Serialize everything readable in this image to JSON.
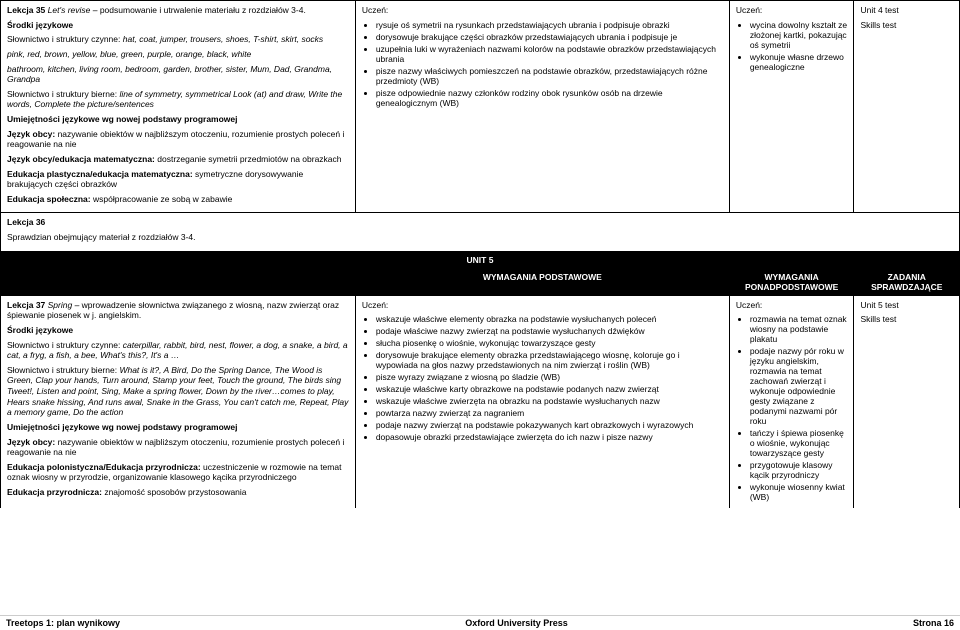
{
  "row1": {
    "col1": {
      "title_a": "Lekcja 35 ",
      "title_b": "Let's revise – ",
      "title_c": "podsumowanie i utrwalenie materiału z rozdziałów 3-4.",
      "srodki": "Środki językowe",
      "p1a": "Słownictwo i struktury czynne: ",
      "p1b": "hat, coat, jumper, trousers, shoes, T-shirt, skirt, socks",
      "p2": "pink, red, brown, yellow, blue, green, purple, orange, black, white",
      "p3": "bathroom, kitchen, living room, bedroom, garden, brother, sister, Mum, Dad, Grandma, Grandpa",
      "p4a": "Słownictwo i struktury bierne: ",
      "p4b": "line of symmetry, symmetrical Look (at) and draw, Write the words, Complete the picture/sentences",
      "umiej": "Umiejętności językowe wg nowej podstawy programowej",
      "p5a": "Język obcy: ",
      "p5b": "nazywanie obiektów w najbliższym otoczeniu, rozumienie prostych poleceń i reagowanie na nie",
      "p6a": "Język obcy/edukacja matematyczna: ",
      "p6b": "dostrzeganie symetrii przedmiotów na obrazkach",
      "p7a": "Edukacja plastyczna/edukacja matematyczna: ",
      "p7b": "symetryczne dorysowywanie brakujących części obrazków",
      "p8a": "Edukacja społeczna: ",
      "p8b": "współpracowanie ze sobą w zabawie"
    },
    "col2": {
      "uczen": "Uczeń:",
      "items": [
        "rysuje oś symetrii na rysunkach przedstawiających ubrania i podpisuje obrazki",
        "dorysowuje brakujące części obrazków przedstawiających ubrania i podpisuje je",
        "uzupełnia luki w wyrażeniach nazwami kolorów na podstawie obrazków przedstawiających ubrania",
        "pisze nazwy właściwych pomieszczeń na podstawie obrazków, przedstawiających różne przedmioty (WB)",
        "pisze odpowiednie nazwy członków rodziny obok rysunków osób na drzewie genealogicznym (WB)"
      ]
    },
    "col3": {
      "uczen": "Uczeń:",
      "items": [
        "wycina dowolny kształt ze złożonej kartki, pokazując oś symetrii",
        "wykonuje własne drzewo genealogiczne"
      ]
    },
    "col4": {
      "l1": "Unit 4 test",
      "l2": "Skills test"
    }
  },
  "row2": {
    "lekcja": "Lekcja 36",
    "text": "Sprawdzian obejmujący materiał z rozdziałów 3-4."
  },
  "unit": "UNIT 5",
  "headers": {
    "h2": "WYMAGANIA PODSTAWOWE",
    "h3": "WYMAGANIA PONADPODSTAWOWE",
    "h4": "ZADANIA SPRAWDZAJĄCE"
  },
  "row3": {
    "col1": {
      "title_a": "Lekcja 37 ",
      "title_b": "Spring – ",
      "title_c": "wprowadzenie słownictwa związanego z wiosną, nazw zwierząt oraz śpiewanie piosenek w j. angielskim.",
      "srodki": "Środki językowe",
      "p1a": "Słownictwo i struktury czynne: ",
      "p1b": "caterpillar, rabbit, bird, nest, flower, a dog, a snake, a bird, a cat, a fryg, a fish, a bee, What's this?, It's a …",
      "p2a": "Słownictwo i struktury bierne: ",
      "p2b": "What is it?, A Bird, Do the Spring Dance, The Wood is Green, Clap your hands, Turn around, Stamp your feet, Touch the ground, The birds sing Tweet!, Listen and point, Sing, Make a spring flower, Down by the river…comes to play, Hears snake hissing, And runs awal, Snake in the Grass, You can't catch me, Repeat, Play a memory game, Do the action",
      "umiej": "Umiejętności językowe wg nowej podstawy programowej",
      "p3a": "Język obcy: ",
      "p3b": "nazywanie obiektów w najbliższym otoczeniu, rozumienie prostych poleceń i reagowanie na nie",
      "p4a": "Edukacja polonistyczna/Edukacja przyrodnicza: ",
      "p4b": "uczestniczenie w rozmowie na temat oznak wiosny w przyrodzie, organizowanie klasowego kącika przyrodniczego",
      "p5a": "Edukacja przyrodnicza: ",
      "p5b": "znajomość sposobów przystosowania"
    },
    "col2": {
      "uczen": "Uczeń:",
      "items": [
        "wskazuje właściwe elementy obrazka na podstawie wysłuchanych poleceń",
        "podaje właściwe nazwy zwierząt na podstawie wysłuchanych dźwięków",
        "słucha piosenkę o wiośnie, wykonując towarzyszące gesty",
        "dorysowuje brakujące elementy obrazka przedstawiającego wiosnę, koloruje go i wypowiada na głos nazwy przedstawionych na nim zwierząt i roślin (WB)",
        "pisze wyrazy związane z wiosną po śladzie (WB)",
        "wskazuje właściwe karty obrazkowe na podstawie podanych nazw zwierząt",
        "wskazuje właściwe zwierzęta na obrazku na podstawie wysłuchanych nazw",
        "powtarza nazwy zwierząt za nagraniem",
        "podaje nazwy zwierząt na podstawie pokazywanych kart obrazkowych i wyrazowych",
        "dopasowuje obrazki przedstawiające zwierzęta do ich nazw i pisze nazwy"
      ]
    },
    "col3": {
      "uczen": "Uczeń:",
      "items": [
        "rozmawia na temat oznak wiosny na podstawie plakatu",
        "podaje nazwy pór roku w języku angielskim, rozmawia na temat zachowań zwierząt i wykonuje odpowiednie gesty związane z podanymi nazwami pór roku",
        "tańczy i śpiewa piosenkę o wiośnie, wykonując towarzyszące gesty",
        "przygotowuje klasowy kącik przyrodniczy",
        "wykonuje wiosenny kwiat (WB)"
      ]
    },
    "col4": {
      "l1": "Unit 5 test",
      "l2": "Skills test"
    }
  },
  "footer": {
    "left": "Treetops 1: plan wynikowy",
    "center": "Oxford University Press",
    "right": "Strona 16"
  }
}
